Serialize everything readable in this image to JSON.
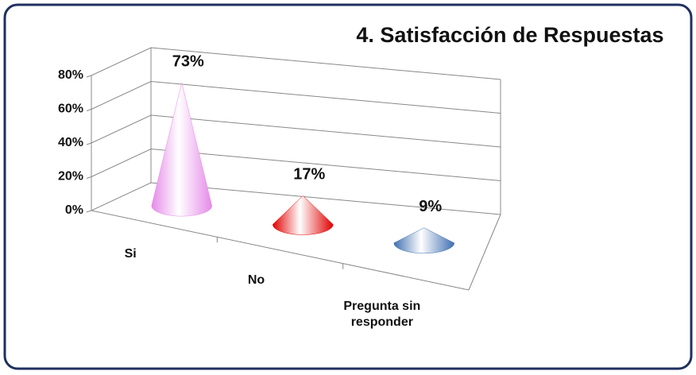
{
  "chart_data": {
    "type": "cone3d",
    "title": "4. Satisfacción de Respuestas",
    "categories": [
      "Si",
      "No",
      "Pregunta sin responder"
    ],
    "values": [
      73,
      17,
      9
    ],
    "value_labels": [
      "73%",
      "17%",
      "9%"
    ],
    "colors": [
      "#e58ae8",
      "#e00000",
      "#3f6fb0"
    ],
    "ylim": [
      0,
      80
    ],
    "yticks": [
      {
        "value": 0,
        "label": "0%"
      },
      {
        "value": 20,
        "label": "20%"
      },
      {
        "value": 40,
        "label": "40%"
      },
      {
        "value": 60,
        "label": "60%"
      },
      {
        "value": 80,
        "label": "80%"
      }
    ],
    "grid": true
  }
}
